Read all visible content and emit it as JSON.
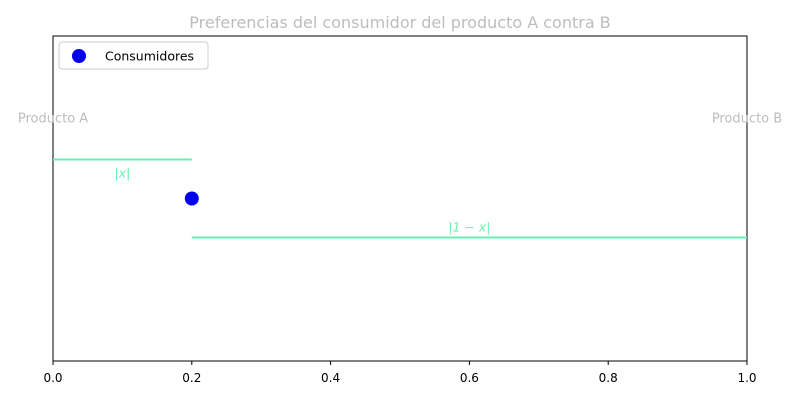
{
  "colors": {
    "segment": "#66f0b0",
    "point": "#0000ee",
    "muted_text": "#bdbdbd",
    "axis": "#000000"
  },
  "chart_data": {
    "type": "scatter",
    "title": "Preferencias del consumidor del producto A contra B",
    "xlabel": "",
    "ylabel": "",
    "xlim": [
      0,
      1
    ],
    "ylim": [
      0,
      1
    ],
    "x_ticks": [
      "0.0",
      "0.2",
      "0.4",
      "0.6",
      "0.8",
      "1.0"
    ],
    "x_tick_values": [
      0,
      0.2,
      0.4,
      0.6,
      0.8,
      1.0
    ],
    "grid": false,
    "legend_position": "upper-left",
    "series": [
      {
        "name": "Consumidores",
        "x": [
          0.2
        ],
        "y": [
          0.5
        ]
      }
    ],
    "segments": [
      {
        "label": "|x|",
        "x_start": 0.0,
        "x_end": 0.2,
        "y": 0.62
      },
      {
        "label": "|1 − x|",
        "x_start": 0.2,
        "x_end": 1.0,
        "y": 0.38
      }
    ],
    "products": [
      {
        "label": "Producto A",
        "x": 0.0,
        "y": 0.75
      },
      {
        "label": "Producto B",
        "x": 1.0,
        "y": 0.75
      }
    ]
  }
}
